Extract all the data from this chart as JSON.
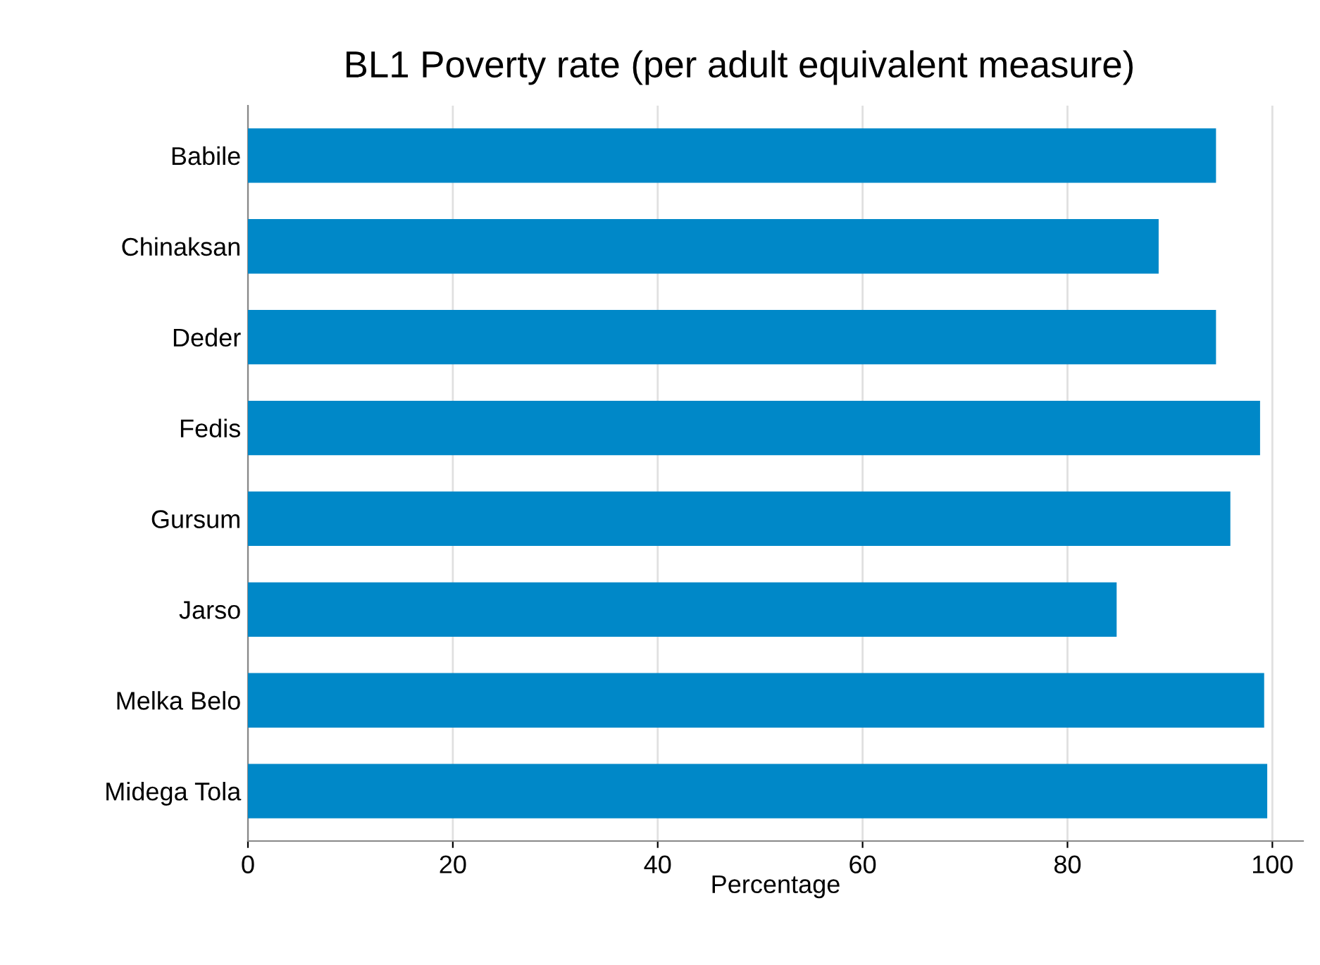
{
  "chart_data": {
    "type": "bar",
    "orientation": "horizontal",
    "title": "BL1 Poverty rate (per adult equivalent measure)",
    "xlabel": "Percentage",
    "categories": [
      "Babile",
      "Chinaksan",
      "Deder",
      "Fedis",
      "Gursum",
      "Jarso",
      "Melka Belo",
      "Midega Tola"
    ],
    "values": [
      94.5,
      88.9,
      94.5,
      98.8,
      95.9,
      84.8,
      99.2,
      99.5
    ],
    "color": "#0088c8",
    "xlim": [
      0,
      103
    ],
    "xticks": [
      0,
      20,
      40,
      60,
      80,
      100
    ],
    "grid": "x"
  }
}
